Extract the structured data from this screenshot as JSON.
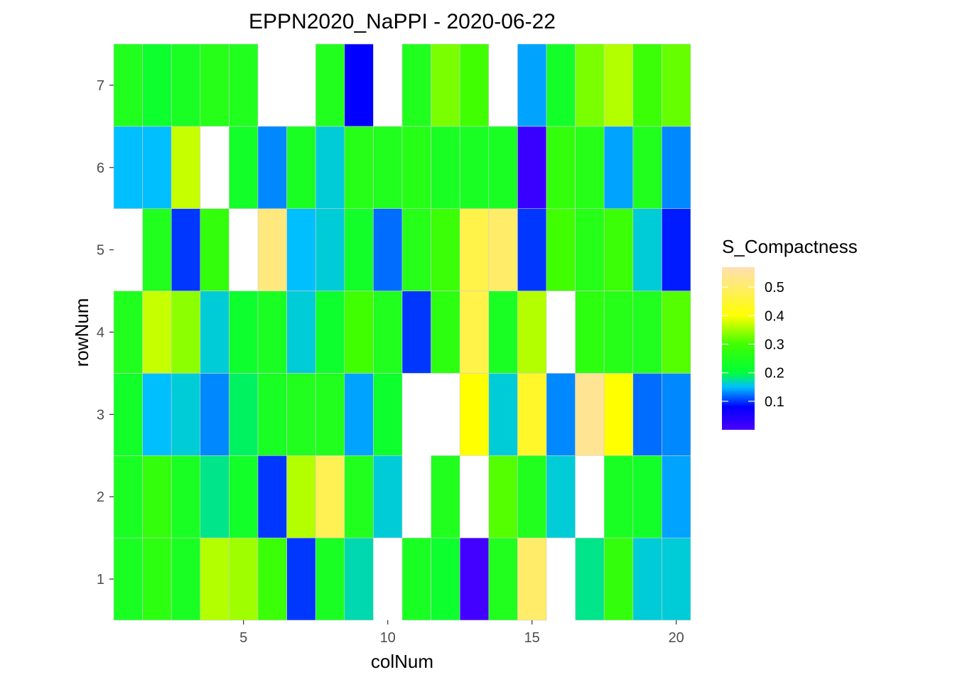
{
  "chart_data": {
    "type": "heatmap",
    "title": "EPPN2020_NaPPI - 2020-06-22",
    "xlabel": "colNum",
    "ylabel": "rowNum",
    "xlim": [
      0.5,
      20.5
    ],
    "ylim": [
      0.5,
      7.5
    ],
    "x_ticks": [
      5,
      10,
      15,
      20
    ],
    "y_ticks": [
      1,
      2,
      3,
      4,
      5,
      6,
      7
    ],
    "grid": false,
    "legend": {
      "title": "S_Compactness",
      "placement": "right",
      "min": 0.0,
      "max": 0.57,
      "breaks": [
        0.1,
        0.2,
        0.3,
        0.4,
        0.5
      ],
      "colors": [
        {
          "value": 0.0,
          "color": "#4b00ff"
        },
        {
          "value": 0.08,
          "color": "#0000ff"
        },
        {
          "value": 0.15,
          "color": "#00bfff"
        },
        {
          "value": 0.2,
          "color": "#00ff3a"
        },
        {
          "value": 0.3,
          "color": "#40ff00"
        },
        {
          "value": 0.4,
          "color": "#ffff00"
        },
        {
          "value": 0.57,
          "color": "#ffdfb2"
        }
      ]
    },
    "rows": [
      {
        "row": 1,
        "values": [
          0.24,
          0.27,
          0.24,
          0.36,
          0.35,
          0.29,
          0.1,
          0.24,
          0.17,
          null,
          0.24,
          0.22,
          0.01,
          0.25,
          0.5,
          null,
          0.18,
          0.28,
          0.16,
          0.16
        ]
      },
      {
        "row": 2,
        "values": [
          0.24,
          0.28,
          0.24,
          0.18,
          0.23,
          0.1,
          0.36,
          0.48,
          0.25,
          0.16,
          null,
          0.25,
          null,
          0.31,
          0.25,
          0.16,
          null,
          0.24,
          0.23,
          0.14
        ]
      },
      {
        "row": 3,
        "values": [
          0.23,
          0.15,
          0.16,
          0.13,
          0.19,
          0.24,
          0.25,
          0.25,
          0.14,
          0.22,
          null,
          null,
          0.4,
          0.16,
          0.44,
          0.13,
          0.54,
          0.4,
          0.12,
          0.13
        ]
      },
      {
        "row": 4,
        "values": [
          0.25,
          0.37,
          0.34,
          0.16,
          0.22,
          0.24,
          0.16,
          0.22,
          0.3,
          0.25,
          0.1,
          0.27,
          0.47,
          0.24,
          0.36,
          null,
          0.27,
          0.26,
          0.25,
          0.31
        ]
      },
      {
        "row": 5,
        "values": [
          null,
          0.25,
          0.1,
          0.28,
          null,
          0.52,
          0.15,
          0.16,
          0.23,
          0.12,
          0.26,
          0.29,
          0.47,
          0.5,
          0.1,
          0.3,
          0.26,
          0.29,
          0.16,
          0.09
        ]
      },
      {
        "row": 6,
        "values": [
          0.15,
          0.15,
          0.37,
          null,
          0.23,
          0.13,
          0.24,
          0.16,
          0.26,
          0.25,
          0.26,
          0.24,
          0.24,
          0.24,
          0.02,
          0.28,
          0.26,
          0.14,
          0.25,
          0.13
        ]
      },
      {
        "row": 7,
        "values": [
          0.25,
          0.22,
          0.24,
          0.26,
          0.25,
          null,
          null,
          0.25,
          0.08,
          null,
          0.25,
          0.33,
          0.3,
          null,
          0.14,
          0.23,
          0.33,
          0.36,
          0.29,
          0.32
        ]
      }
    ]
  }
}
